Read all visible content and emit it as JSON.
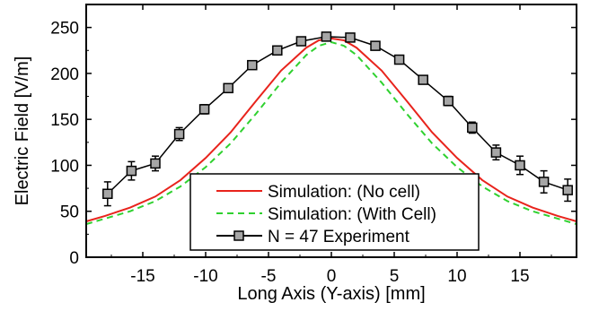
{
  "chart_data": {
    "type": "line",
    "xlabel": "Long Axis (Y-axis) [mm]",
    "ylabel": "Electric Field [V/m]",
    "xlim": [
      -19.5,
      19.5
    ],
    "ylim": [
      0,
      275
    ],
    "x_ticks": [
      -15,
      -10,
      -5,
      0,
      5,
      10,
      15
    ],
    "x_tick_labels": [
      "-15",
      "-10",
      "-5",
      "0",
      "5",
      "10",
      "15"
    ],
    "y_ticks": [
      0,
      50,
      100,
      150,
      200,
      250
    ],
    "y_tick_labels": [
      "0",
      "50",
      "100",
      "150",
      "200",
      "250"
    ],
    "legend_position": "bottom-center",
    "series": [
      {
        "name": "Simulation: (No cell)",
        "style": "solid",
        "color": "#e8231c",
        "x": [
          -19.5,
          -18,
          -16,
          -14,
          -12,
          -10,
          -8,
          -6,
          -4,
          -2,
          -1,
          0,
          1,
          2,
          4,
          6,
          8,
          10,
          12,
          14,
          16,
          18,
          19.5
        ],
        "y": [
          39,
          45,
          54,
          66,
          84,
          108,
          136,
          170,
          203,
          228,
          236,
          238,
          236,
          228,
          203,
          170,
          136,
          108,
          84,
          66,
          54,
          45,
          39
        ]
      },
      {
        "name": "Simulation: (With Cell)",
        "style": "dashed",
        "color": "#2fd12f",
        "x": [
          -19.5,
          -18,
          -16,
          -14,
          -12,
          -10,
          -8,
          -6,
          -4,
          -2,
          -1,
          0,
          1,
          2,
          4,
          6,
          8,
          10,
          12,
          14,
          16,
          18,
          19.5
        ],
        "y": [
          36,
          42,
          50,
          61,
          77,
          98,
          124,
          156,
          190,
          220,
          230,
          234,
          230,
          220,
          190,
          156,
          124,
          98,
          77,
          61,
          50,
          42,
          36
        ]
      },
      {
        "name": "N = 47 Experiment",
        "style": "line-square-errorbar",
        "color": "#000000",
        "marker_fill": "#a6a6a6",
        "x": [
          -17.8,
          -15.9,
          -14.0,
          -12.1,
          -10.1,
          -8.2,
          -6.3,
          -4.3,
          -2.4,
          -0.4,
          1.5,
          3.5,
          5.4,
          7.3,
          9.3,
          11.2,
          13.1,
          15.0,
          16.9,
          18.8
        ],
        "y": [
          69,
          94,
          102,
          134,
          161,
          184,
          209,
          225,
          235,
          240,
          239,
          230,
          215,
          193,
          170,
          141,
          114,
          100,
          82,
          73
        ],
        "error": [
          13,
          10,
          8,
          7,
          5,
          4,
          3,
          3,
          3,
          3,
          3,
          3,
          3,
          4,
          5,
          6,
          8,
          10,
          12,
          12
        ]
      }
    ]
  }
}
